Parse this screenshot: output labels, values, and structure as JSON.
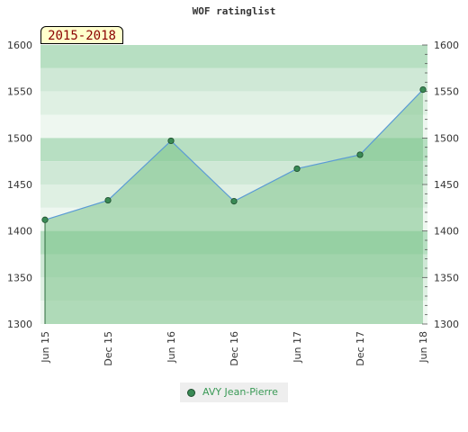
{
  "chart_data": {
    "type": "area",
    "title": "WOF ratinglist",
    "period_label": "2015-2018",
    "categories": [
      "Jun 15",
      "Dec 15",
      "Jun 16",
      "Dec 16",
      "Jun 17",
      "Dec 17",
      "Jun 18"
    ],
    "series": [
      {
        "name": "AVY Jean-Pierre",
        "values": [
          1412,
          1433,
          1497,
          1432,
          1467,
          1482,
          1552
        ]
      }
    ],
    "ylim": [
      1300,
      1600
    ],
    "yticks": [
      1300,
      1350,
      1400,
      1450,
      1500,
      1550,
      1600
    ],
    "grid": true,
    "legend_position": "bottom",
    "colors": {
      "line": "#5b9bd5",
      "fill": "#7cc38b",
      "marker": "#3a8a55",
      "bands": [
        "#dff0e3",
        "#cfe8d6",
        "#b7dfc2",
        "#eef7f0"
      ]
    }
  }
}
